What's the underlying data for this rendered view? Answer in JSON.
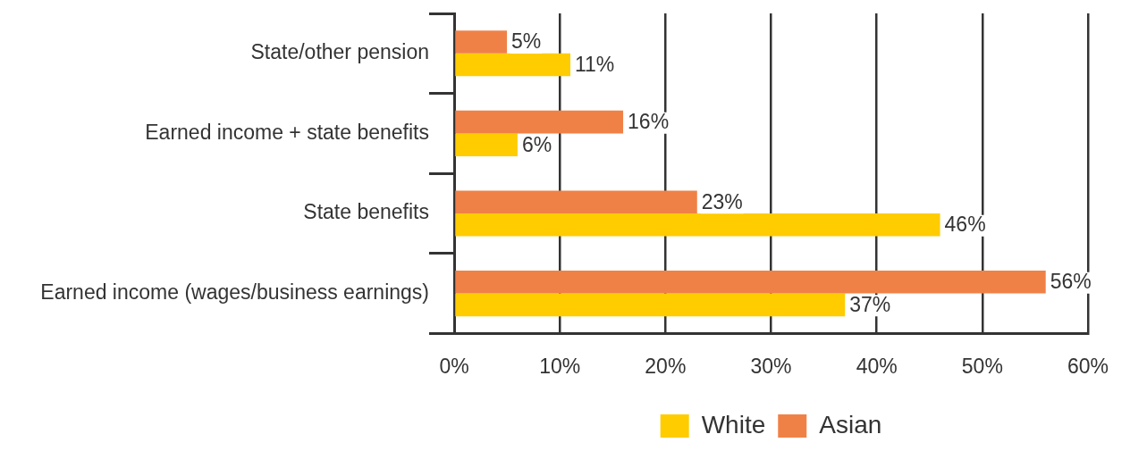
{
  "chart_data": {
    "type": "bar",
    "orientation": "horizontal",
    "categories": [
      "State/other pension",
      "Earned income + state benefits",
      "State benefits",
      "Earned income (wages/business earnings)"
    ],
    "series": [
      {
        "name": "White",
        "color": "#ffcc00",
        "values": [
          11,
          6,
          46,
          37
        ],
        "value_labels": [
          "11%",
          "6%",
          "46%",
          "37%"
        ]
      },
      {
        "name": "Asian",
        "color": "#f08146",
        "values": [
          5,
          16,
          23,
          56
        ],
        "value_labels": [
          "5%",
          "16%",
          "23%",
          "56%"
        ]
      }
    ],
    "xlim": [
      0,
      60
    ],
    "xticks": [
      {
        "value": 0,
        "label": "0%"
      },
      {
        "value": 10,
        "label": "10%"
      },
      {
        "value": 20,
        "label": "20%"
      },
      {
        "value": 30,
        "label": "30%"
      },
      {
        "value": 40,
        "label": "40%"
      },
      {
        "value": 50,
        "label": "50%"
      },
      {
        "value": 60,
        "label": "60%"
      }
    ],
    "grid": "x",
    "legend": "bottom"
  }
}
